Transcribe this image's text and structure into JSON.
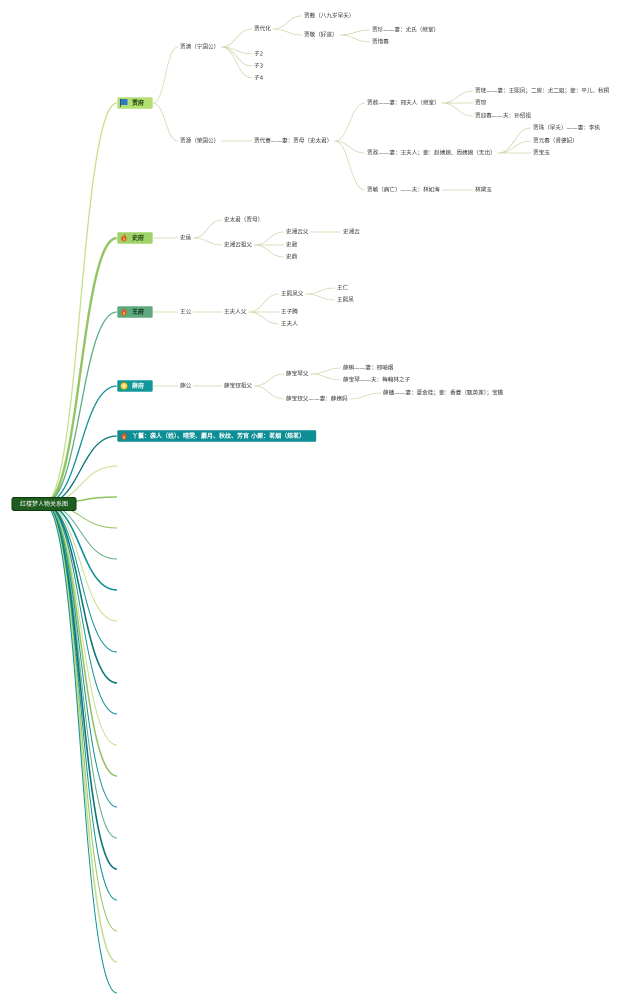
{
  "root": {
    "label": "红楼梦人物关系图"
  },
  "colors": {
    "root_fill": "#1f5c1f",
    "root_stroke": "#0e3a0e",
    "root_text": "#ffffff",
    "line_light": "#c6df8e",
    "line_green": "#93c463",
    "line_mid": "#5fae84",
    "line_teal": "#119196",
    "line_dark": "#0d7676",
    "branch_line": "#c9d9a9",
    "node_text": "#333333",
    "node_jia_fill": "#b3de73",
    "node_shi_fill": "#9fd36a",
    "node_wang_fill": "#5daa7d",
    "node_xue_fill": "#10979a",
    "node_servant_fill": "#0d8e94"
  },
  "branches": [
    {
      "id": "jia",
      "label": "贾府",
      "icon": "flag-icon",
      "children": [
        {
          "label": "贾演（宁国公）",
          "children": [
            {
              "label": "贾代化",
              "children": [
                {
                  "label": "贾敷（八九岁早夭）"
                },
                {
                  "label": "贾敬（好道）",
                  "children": [
                    {
                      "label": "贾珍——妻：尤氏（继室）"
                    },
                    {
                      "label": "贾惜春"
                    }
                  ]
                }
              ]
            },
            {
              "label": "子2"
            },
            {
              "label": "子3"
            },
            {
              "label": "子4"
            }
          ]
        },
        {
          "label": "贾源（荣国公）",
          "children": [
            {
              "label": "贾代善——妻：贾母（史太君）",
              "children": [
                {
                  "label": "贾赦——妻：邢夫人（继室）",
                  "children": [
                    {
                      "label": "贾琏——妻：王熙凤；二房：尤二姐；妾：平儿、秋桐"
                    },
                    {
                      "label": "贾琮"
                    },
                    {
                      "label": "贾迎春——夫：孙绍祖"
                    }
                  ]
                },
                {
                  "label": "贾政——妻：王夫人；妾：赵姨娘、周姨娘（无出）",
                  "children": [
                    {
                      "label": "贾珠（早夭）——妻：李纨"
                    },
                    {
                      "label": "贾元春（贤德妃）"
                    },
                    {
                      "label": "贾宝玉"
                    }
                  ]
                },
                {
                  "label": "贾敏（病亡）——夫：林如海",
                  "children": [
                    {
                      "label": "林黛玉"
                    }
                  ]
                }
              ]
            }
          ]
        }
      ]
    },
    {
      "id": "shi",
      "label": "史府",
      "icon": "fire-icon",
      "children": [
        {
          "label": "史侯",
          "children": [
            {
              "label": "史太君（贾母）"
            },
            {
              "label": "史湘云祖父",
              "children": [
                {
                  "label": "史湘云父",
                  "children": [
                    {
                      "label": "史湘云"
                    }
                  ]
                },
                {
                  "label": "史鼐"
                },
                {
                  "label": "史鼎"
                }
              ]
            }
          ]
        }
      ]
    },
    {
      "id": "wang",
      "label": "王府",
      "icon": "fire-icon",
      "children": [
        {
          "label": "王公",
          "children": [
            {
              "label": "王夫人父",
              "children": [
                {
                  "label": "王熙凤父",
                  "children": [
                    {
                      "label": "王仁"
                    },
                    {
                      "label": "王熙凤"
                    }
                  ]
                },
                {
                  "label": "王子腾"
                },
                {
                  "label": "王夫人"
                }
              ]
            }
          ]
        }
      ]
    },
    {
      "id": "xue",
      "label": "薛府",
      "icon": "gem-icon",
      "children": [
        {
          "label": "薛公",
          "children": [
            {
              "label": "薛宝钗祖父",
              "children": [
                {
                  "label": "薛宝琴父",
                  "children": [
                    {
                      "label": "薛蝌——妻：邢岫烟"
                    },
                    {
                      "label": "薛宝琴——夫：梅翰林之子"
                    }
                  ]
                },
                {
                  "label": "薛宝钗父——妻：薛姨妈",
                  "children": [
                    {
                      "label": "薛蟠——妻：夏金桂；妾：香菱（甄英莲）；宝蟾"
                    }
                  ]
                }
              ]
            }
          ]
        }
      ]
    },
    {
      "id": "servants",
      "label": "丫鬟：袭人（姓）、晴雯、麝月、秋纹、芳官 小厮：茗烟（焙茗）",
      "icon": "fire-icon",
      "children": []
    }
  ]
}
